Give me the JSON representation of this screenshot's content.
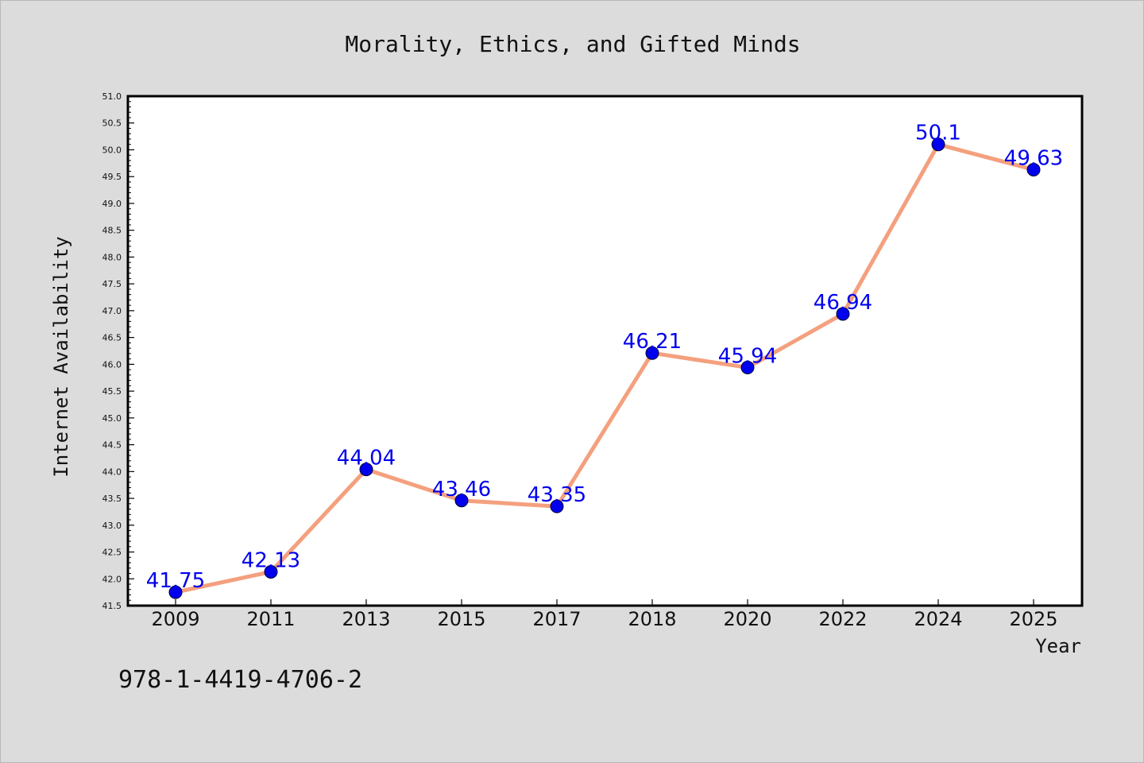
{
  "chart_data": {
    "type": "line",
    "title": "Morality, Ethics, and Gifted Minds",
    "xlabel": "Year",
    "ylabel": "Internet Availability",
    "categories": [
      "2009",
      "2011",
      "2013",
      "2015",
      "2017",
      "2018",
      "2020",
      "2022",
      "2024",
      "2025"
    ],
    "series": [
      {
        "values": [
          41.75,
          42.13,
          44.04,
          43.46,
          43.35,
          46.21,
          45.94,
          46.94,
          50.1,
          49.63
        ],
        "point_labels": [
          "41.75",
          "42.13",
          "44.04",
          "43.46",
          "43.35",
          "46.21",
          "45.94",
          "46.94",
          "50.1",
          "49.63"
        ]
      }
    ],
    "ylim": [
      41.5,
      51.0
    ],
    "ytick_step": 0.5,
    "ytick_decimals": 1,
    "grid": false,
    "legend": "none",
    "colors": {
      "line": "#f4a07e",
      "marker": "#0000ee",
      "label": "#0000ee",
      "background": "#dcdcdc",
      "plot_background": "#ffffff"
    }
  },
  "footer_text": "978-1-4419-4706-2"
}
